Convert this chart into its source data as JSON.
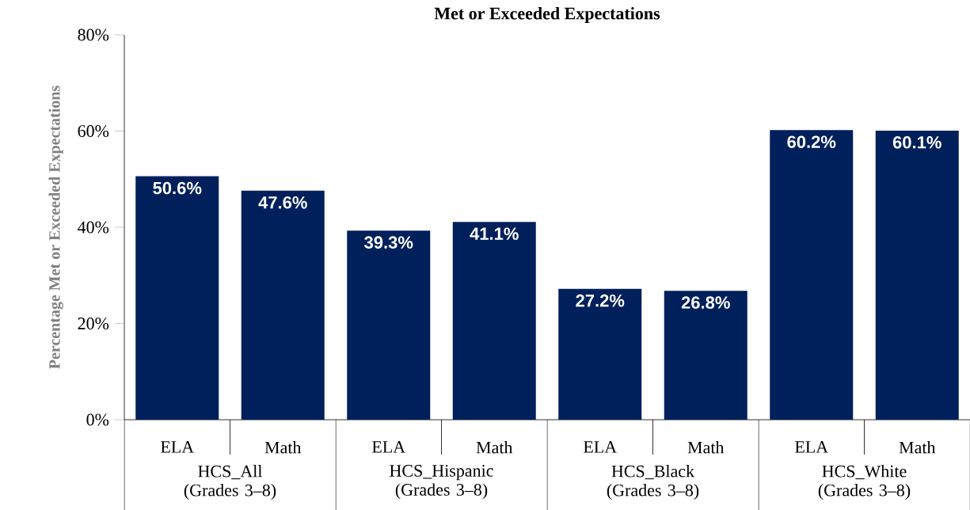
{
  "chart_data": {
    "type": "bar",
    "title": "Met or Exceeded Expectations",
    "ylabel": "Percentage Met or Exceeded Expectations",
    "categories": [
      "ELA",
      "Math",
      "ELA",
      "Math",
      "ELA",
      "Math",
      "ELA",
      "Math"
    ],
    "values": [
      50.6,
      47.6,
      39.3,
      41.1,
      27.2,
      26.8,
      60.2,
      60.1
    ],
    "value_labels": [
      "50.6%",
      "47.6%",
      "39.3%",
      "41.1%",
      "27.2%",
      "26.8%",
      "60.2%",
      "60.1%"
    ],
    "color": "#00205b",
    "ylim": [
      0,
      80
    ],
    "yticks": [
      {
        "value": 0,
        "label": "0%"
      },
      {
        "value": 20,
        "label": "20%"
      },
      {
        "value": 40,
        "label": "40%"
      },
      {
        "value": 60,
        "label": "60%"
      },
      {
        "value": 80,
        "label": "80%"
      }
    ],
    "annotations": [
      "HCS_All (Grades 3–8)",
      "HCS_Hispanic (Grades 3–8)",
      "HCS_Black (Grades 3–8)",
      "HCS_White (Grades 3–8)"
    ],
    "grid": false
  }
}
